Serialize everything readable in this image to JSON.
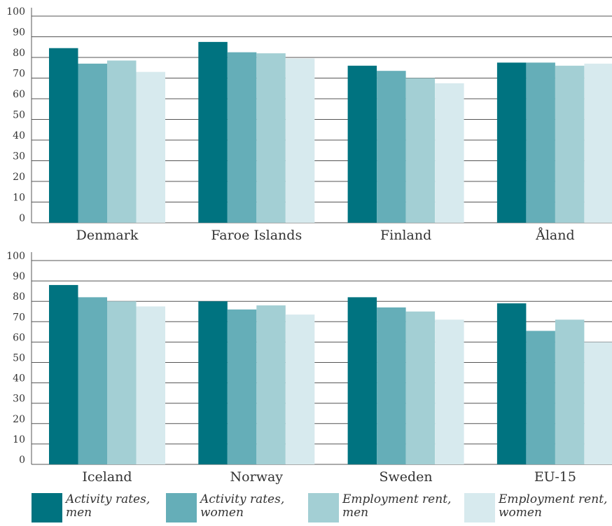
{
  "chart_data": [
    {
      "type": "bar",
      "categories": [
        "Denmark",
        "Faroe Islands",
        "Finland",
        "Åland"
      ],
      "series": [
        {
          "name": "Activity rates, men",
          "color": "#007380",
          "values": [
            84.5,
            87.5,
            76,
            77.5
          ]
        },
        {
          "name": "Activity rates, women",
          "color": "#65aeb8",
          "values": [
            77,
            82.5,
            73.5,
            77.5
          ]
        },
        {
          "name": "Employment rent, men",
          "color": "#a3cfd4",
          "values": [
            78.5,
            82,
            70,
            76
          ]
        },
        {
          "name": "Employment rent, women",
          "color": "#d7eaee",
          "values": [
            73,
            79.5,
            67.5,
            77
          ]
        }
      ],
      "ylim": [
        0,
        100
      ],
      "yticks": [
        0,
        10,
        20,
        30,
        40,
        50,
        60,
        70,
        80,
        90,
        100
      ],
      "grid": true
    },
    {
      "type": "bar",
      "categories": [
        "Iceland",
        "Norway",
        "Sweden",
        "EU-15"
      ],
      "series": [
        {
          "color": "#007380",
          "values": [
            88,
            80,
            82,
            79
          ]
        },
        {
          "color": "#65aeb8",
          "values": [
            82,
            76,
            77,
            65.5
          ]
        },
        {
          "color": "#a3cfd4",
          "values": [
            80,
            78,
            75,
            71
          ]
        },
        {
          "color": "#d7eaee",
          "values": [
            77.5,
            73.5,
            71,
            60
          ]
        }
      ],
      "ylim": [
        0,
        100
      ],
      "yticks": [
        0,
        10,
        20,
        30,
        40,
        50,
        60,
        70,
        80,
        90,
        100
      ],
      "grid": true
    }
  ]
}
